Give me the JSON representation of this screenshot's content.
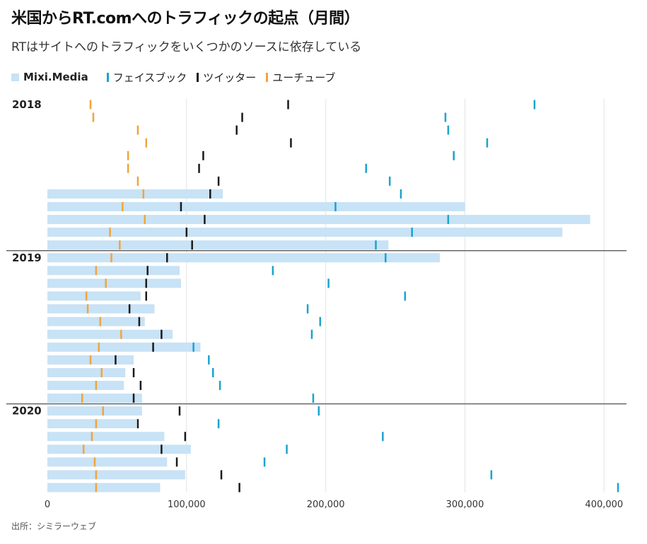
{
  "header": {
    "title": "米国からRT.comへのトラフィックの起点（月間）",
    "subtitle": "RTはサイトへのトラフィックをいくつかのソースに依存している"
  },
  "footer": {
    "source": "出所：シミラーウェブ"
  },
  "colors": {
    "mixi": "#c8e2f6",
    "facebook": "#1aa3cf",
    "twitter": "#1a1a1a",
    "youtube": "#f0a53a",
    "grid": "#e3e3e3",
    "divider": "#666666"
  },
  "chart_data": {
    "type": "bar",
    "orientation": "horizontal",
    "xlim": [
      0,
      410000
    ],
    "x_ticks": [
      0,
      100000,
      200000,
      300000,
      400000
    ],
    "x_tick_labels": [
      "0",
      "100,000",
      "200,000",
      "300,000",
      "400,000"
    ],
    "year_labels": [
      {
        "label": "2018",
        "row": 0
      },
      {
        "label": "2019",
        "row": 12
      },
      {
        "label": "2020",
        "row": 24
      }
    ],
    "series": [
      {
        "name": "Mixi.Media",
        "kind": "bar",
        "values": [
          null,
          null,
          null,
          null,
          null,
          null,
          null,
          126000,
          300000,
          390000,
          370000,
          245000,
          282000,
          95000,
          96000,
          67000,
          77000,
          70000,
          90000,
          110000,
          62000,
          56000,
          55000,
          68000,
          68000,
          64000,
          84000,
          103000,
          86000,
          99000,
          81000
        ]
      },
      {
        "name": "フェイスブック",
        "kind": "tick",
        "values": [
          350000,
          286000,
          288000,
          316000,
          292000,
          229000,
          246000,
          254000,
          207000,
          288000,
          262000,
          236000,
          243000,
          162000,
          202000,
          257000,
          187000,
          196000,
          190000,
          105000,
          116000,
          119000,
          124000,
          191000,
          195000,
          123000,
          241000,
          172000,
          156000,
          319000,
          410000
        ]
      },
      {
        "name": "ツイッター",
        "kind": "tick",
        "values": [
          173000,
          140000,
          136000,
          175000,
          112000,
          109000,
          123000,
          117000,
          96000,
          113000,
          100000,
          104000,
          86000,
          72000,
          71000,
          71000,
          59000,
          66000,
          82000,
          76000,
          49000,
          62000,
          67000,
          62000,
          95000,
          65000,
          99000,
          82000,
          93000,
          125000,
          138000
        ]
      },
      {
        "name": "ユーチューブ",
        "kind": "tick",
        "values": [
          31000,
          33000,
          65000,
          71000,
          58000,
          58000,
          65000,
          69000,
          54000,
          70000,
          45000,
          52000,
          46000,
          35000,
          42000,
          28000,
          29000,
          38000,
          53000,
          37000,
          31000,
          39000,
          35000,
          25000,
          40000,
          35000,
          32000,
          26000,
          34000,
          35000,
          35000
        ]
      }
    ]
  }
}
